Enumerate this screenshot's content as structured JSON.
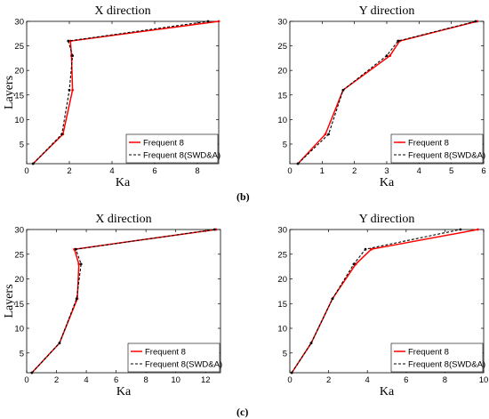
{
  "panel_labels": [
    "(b)",
    "(c)"
  ],
  "chart_data": [
    {
      "type": "line",
      "title": "X direction",
      "xlabel": "Ka",
      "ylabel": "Layers",
      "xlim": [
        0,
        9
      ],
      "ylim": [
        1,
        30
      ],
      "xticks": [
        0,
        2,
        4,
        6,
        8
      ],
      "yticks": [
        5,
        10,
        15,
        20,
        25,
        30
      ],
      "legend_position": "bottom-right",
      "grid": false,
      "series": [
        {
          "name": "Frequent 8",
          "color": "#ff0000",
          "dash": "solid",
          "points": [
            [
              0.3,
              1
            ],
            [
              1.7,
              7
            ],
            [
              2.15,
              16
            ],
            [
              2.1,
              23
            ],
            [
              2.05,
              26
            ],
            [
              9.0,
              30
            ]
          ]
        },
        {
          "name": "Frequent 8(SWD&A)",
          "color": "#000000",
          "dash": "dashed",
          "points": [
            [
              0.3,
              1
            ],
            [
              1.65,
              7
            ],
            [
              2.0,
              16
            ],
            [
              2.15,
              23
            ],
            [
              1.95,
              26
            ],
            [
              8.5,
              30
            ]
          ]
        }
      ]
    },
    {
      "type": "line",
      "title": "Y direction",
      "xlabel": "Ka",
      "ylabel": "",
      "xlim": [
        0,
        6
      ],
      "ylim": [
        1,
        30
      ],
      "xticks": [
        0,
        1,
        2,
        3,
        4,
        5,
        6
      ],
      "yticks": [
        5,
        10,
        15,
        20,
        25,
        30
      ],
      "legend_position": "bottom-right",
      "grid": false,
      "series": [
        {
          "name": "Frequent 8",
          "color": "#ff0000",
          "dash": "solid",
          "points": [
            [
              0.25,
              1
            ],
            [
              1.1,
              7
            ],
            [
              1.65,
              16
            ],
            [
              3.1,
              23
            ],
            [
              3.4,
              26
            ],
            [
              5.8,
              30
            ]
          ]
        },
        {
          "name": "Frequent 8(SWD&A)",
          "color": "#000000",
          "dash": "dashed",
          "points": [
            [
              0.25,
              1
            ],
            [
              1.2,
              7
            ],
            [
              1.65,
              16
            ],
            [
              3.0,
              23
            ],
            [
              3.35,
              26
            ],
            [
              5.75,
              30
            ]
          ]
        }
      ]
    },
    {
      "type": "line",
      "title": "X direction",
      "xlabel": "Ka",
      "ylabel": "Layers",
      "xlim": [
        0,
        13
      ],
      "ylim": [
        1,
        30
      ],
      "xticks": [
        0,
        2,
        4,
        6,
        8,
        10,
        12
      ],
      "yticks": [
        5,
        10,
        15,
        20,
        25,
        30
      ],
      "legend_position": "bottom-right",
      "grid": false,
      "series": [
        {
          "name": "Frequent 8",
          "color": "#ff0000",
          "dash": "solid",
          "points": [
            [
              0.35,
              1
            ],
            [
              2.2,
              7
            ],
            [
              3.4,
              16
            ],
            [
              3.5,
              23
            ],
            [
              3.2,
              26
            ],
            [
              12.7,
              30
            ]
          ]
        },
        {
          "name": "Frequent 8(SWD&A)",
          "color": "#000000",
          "dash": "dashed",
          "points": [
            [
              0.35,
              1
            ],
            [
              2.2,
              7
            ],
            [
              3.35,
              16
            ],
            [
              3.65,
              23
            ],
            [
              3.3,
              26
            ],
            [
              12.6,
              30
            ]
          ]
        }
      ]
    },
    {
      "type": "line",
      "title": "Y direction",
      "xlabel": "Ka",
      "ylabel": "",
      "xlim": [
        0,
        10
      ],
      "ylim": [
        1,
        30
      ],
      "xticks": [
        0,
        2,
        4,
        6,
        8,
        10
      ],
      "yticks": [
        5,
        10,
        15,
        20,
        25,
        30
      ],
      "legend_position": "bottom-right",
      "grid": false,
      "series": [
        {
          "name": "Frequent 8",
          "color": "#ff0000",
          "dash": "solid",
          "points": [
            [
              0.1,
              1
            ],
            [
              1.1,
              7
            ],
            [
              2.2,
              16
            ],
            [
              3.4,
              23
            ],
            [
              4.2,
              26
            ],
            [
              9.7,
              30
            ]
          ]
        },
        {
          "name": "Frequent 8(SWD&A)",
          "color": "#000000",
          "dash": "dashed",
          "points": [
            [
              0.1,
              1
            ],
            [
              1.1,
              7
            ],
            [
              2.2,
              16
            ],
            [
              3.3,
              23
            ],
            [
              3.9,
              26
            ],
            [
              8.8,
              30
            ]
          ]
        }
      ]
    }
  ]
}
